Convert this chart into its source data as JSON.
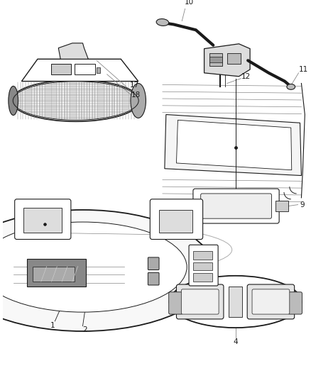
{
  "background_color": "#ffffff",
  "fig_width": 4.38,
  "fig_height": 5.33,
  "dpi": 100,
  "color": "#1a1a1a",
  "lgray": "#888888",
  "gray": "#cccccc"
}
